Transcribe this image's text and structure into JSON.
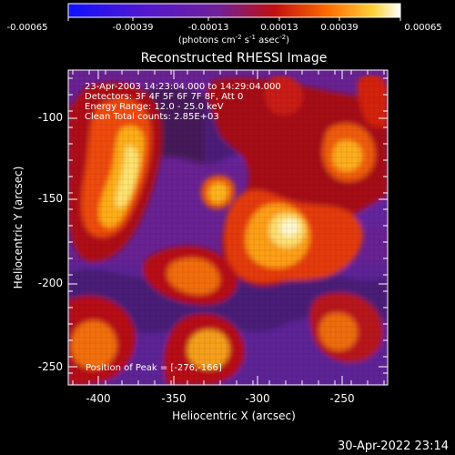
{
  "colorbar": {
    "ticks": [
      "-0.00065",
      "-0.00039",
      "-0.00013",
      "0.00013",
      "0.00039",
      "0.00065"
    ],
    "units_main": "(photons cm",
    "units_exp1": "-2",
    "units_mid": " s",
    "units_exp2": "-1",
    "units_end": " asec",
    "units_exp3": "-2",
    "units_close": ")"
  },
  "plot": {
    "title": "Reconstructed RHESSI Image",
    "x_axis_label": "Heliocentric X (arcsec)",
    "y_axis_label": "Heliocentric Y (arcsec)",
    "x_ticks": [
      "-400",
      "-350",
      "-300",
      "-250"
    ],
    "y_ticks": [
      "-100",
      "-150",
      "-200",
      "-250"
    ]
  },
  "annotations": {
    "time_range": "23-Apr-2003 14:23:04.000 to 14:29:04.000",
    "detectors": "Detectors: 3F 4F 5F 6F 7F 8F, Att 0",
    "energy_range": "Energy Range: 12.0 - 25.0 keV",
    "clean_counts": "Clean     Total counts: 2.85E+03",
    "peak_position": "Position of Peak = [-276,-166]"
  },
  "footer": {
    "timestamp": "30-Apr-2022 23:14"
  },
  "colors": {
    "background": "#000000",
    "text": "#ffffff"
  },
  "chart_data": {
    "type": "heatmap",
    "title": "Reconstructed RHESSI Image",
    "xlabel": "Heliocentric X (arcsec)",
    "ylabel": "Heliocentric Y (arcsec)",
    "xlim": [
      -410,
      -220
    ],
    "ylim": [
      -262,
      -82
    ],
    "colorbar_range": [
      -0.00065,
      0.00065
    ],
    "peak": [
      -276,
      -166
    ]
  }
}
